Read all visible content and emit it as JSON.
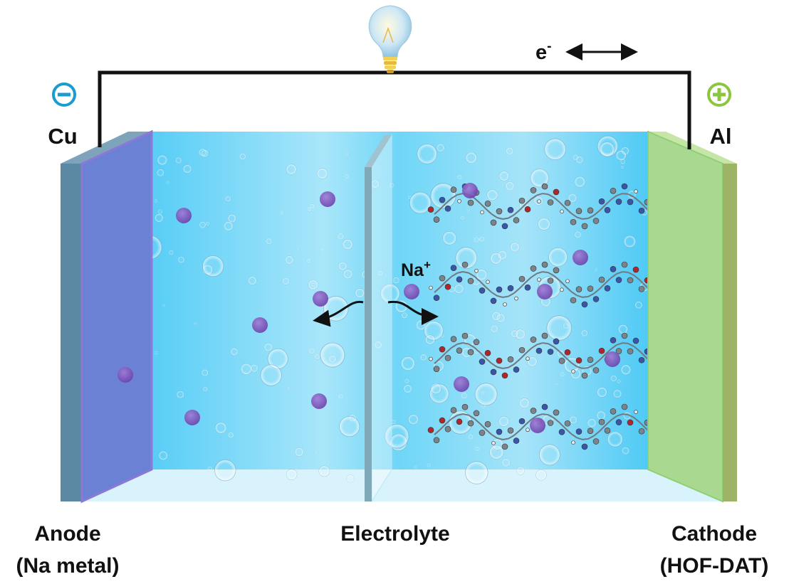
{
  "labels": {
    "anode_metal": "Cu",
    "cathode_metal": "Al",
    "anode_line1": "Anode",
    "anode_line2": "(Na metal)",
    "electrolyte": "Electrolyte",
    "cathode_line1": "Cathode",
    "cathode_line2": "(HOF-DAT)",
    "ion": "Na",
    "ion_charge": "+",
    "electron": "e",
    "electron_charge": "-"
  },
  "icons": {
    "negative_terminal": "minus-circle-icon",
    "positive_terminal": "plus-circle-icon",
    "load": "light-bulb-icon"
  },
  "colors": {
    "negative": "#1a9ccf",
    "positive": "#8cc63f",
    "electrolyte": "#5fd2f6",
    "anode_plate": "#6b82d4",
    "cathode_plate": "#a9d991",
    "sodium_ion": "#7b4fb5"
  }
}
